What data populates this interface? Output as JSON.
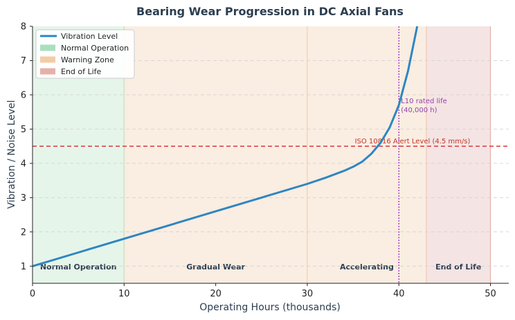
{
  "chart_data": {
    "type": "line",
    "title": "Bearing Wear Progression in DC Axial Fans",
    "xlabel": "Operating Hours (thousands)",
    "ylabel": "Vibration / Noise Level",
    "xlim": [
      0,
      52
    ],
    "ylim": [
      0.5,
      8
    ],
    "xticks": [
      0,
      10,
      20,
      30,
      40,
      50
    ],
    "yticks": [
      1,
      2,
      3,
      4,
      5,
      6,
      7,
      8
    ],
    "grid": "horizontal dashed",
    "legend_position": "top-left",
    "series": [
      {
        "name": "Vibration Level",
        "color": "#2e86c1",
        "x": [
          0,
          5,
          10,
          15,
          20,
          25,
          30,
          32,
          34,
          35,
          36,
          37,
          38,
          39,
          40,
          41,
          42
        ],
        "y": [
          1.0,
          1.4,
          1.8,
          2.2,
          2.6,
          3.0,
          3.4,
          3.58,
          3.78,
          3.9,
          4.05,
          4.28,
          4.6,
          5.05,
          5.7,
          6.7,
          8.0
        ]
      }
    ],
    "zones": [
      {
        "name": "Normal Operation",
        "label": "Normal Operation",
        "from": 0,
        "to": 10,
        "color": "#d5efdc"
      },
      {
        "name": "Warning Zone",
        "label": "Gradual Wear",
        "from": 10,
        "to": 30,
        "color": "#f7e1cf"
      },
      {
        "name": "Warning Zone",
        "label": "Accelerating",
        "from": 30,
        "to": 43,
        "color": "#f7e1cf"
      },
      {
        "name": "End of Life",
        "label": "End of Life",
        "from": 43,
        "to": 50,
        "color": "#efd2d2"
      }
    ],
    "legend": [
      {
        "label": "Vibration Level",
        "kind": "line",
        "color": "#2e86c1"
      },
      {
        "label": "Normal Operation",
        "kind": "patch",
        "color": "#a9dfbf"
      },
      {
        "label": "Warning Zone",
        "kind": "patch",
        "color": "#f5cba7"
      },
      {
        "label": "End of Life",
        "kind": "patch",
        "color": "#e6b0aa"
      }
    ],
    "alert_line": {
      "y": 4.5,
      "label": "ISO 10816 Alert Level (4.5 mm/s)",
      "color": "#d63a3a"
    },
    "l10_line": {
      "x": 40,
      "label_line1": "L10 rated life",
      "label_line2": "(40,000 h)",
      "color": "#9b30c0"
    }
  }
}
